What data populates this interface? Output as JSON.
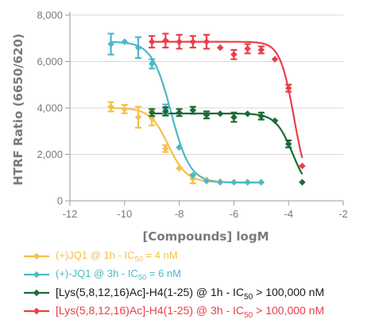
{
  "chart_data": {
    "type": "scatter",
    "xlabel": "[Compounds] logM",
    "ylabel": "HTRF Ratio (6650/620)",
    "xlim": [
      -12,
      -2
    ],
    "ylim": [
      0,
      8000
    ],
    "xticks": [
      -12,
      -10,
      -8,
      -6,
      -4,
      -2
    ],
    "yticks": [
      0,
      2000,
      4000,
      6000,
      8000
    ],
    "ytick_labels": [
      "0",
      "2,000",
      "4,000",
      "6,000",
      "8,000"
    ],
    "grid": "horizontal",
    "legend_position": "bottom",
    "series": [
      {
        "label_parts": [
          "(+)JQ1 @ 1h - IC",
          "50",
          " = 4 nM"
        ],
        "color": "#f5c04a",
        "x": [
          -10.5,
          -10.0,
          -9.5,
          -9.0,
          -8.5,
          -8.0,
          -7.5,
          -7.0,
          -6.5,
          -6.0,
          -5.5,
          -5.0
        ],
        "y": [
          4050,
          3950,
          3600,
          3550,
          2250,
          1400,
          950,
          900,
          830,
          800,
          800,
          800
        ],
        "err": [
          200,
          180,
          450,
          300,
          150,
          100,
          200,
          80,
          60,
          60,
          50,
          50
        ],
        "fit": {
          "top": 4000,
          "bottom": 800,
          "logIC50": -8.4,
          "hill": 1.3
        }
      },
      {
        "label_parts": [
          "(+)-JQ1 @ 3h - IC",
          "50",
          " = 6 nM"
        ],
        "color": "#4db8c8",
        "x": [
          -10.5,
          -10.0,
          -9.5,
          -9.0,
          -8.5,
          -8.0,
          -7.5,
          -7.0,
          -6.5,
          -6.0,
          -5.5,
          -5.0
        ],
        "y": [
          6750,
          6850,
          6600,
          5900,
          3950,
          2300,
          1100,
          850,
          800,
          800,
          800,
          800
        ],
        "err": [
          450,
          100,
          450,
          200,
          200,
          100,
          80,
          60,
          50,
          50,
          50,
          50
        ],
        "fit": {
          "top": 6850,
          "bottom": 780,
          "logIC50": -8.3,
          "hill": 1.25
        }
      },
      {
        "label_parts": [
          "[Lys(5,8,12,16)Ac]-H4(1-25) @ 1h - IC",
          "50",
          " > 100,000 nM"
        ],
        "color": "#1a6b35",
        "x": [
          -9.0,
          -8.5,
          -8.0,
          -7.5,
          -7.0,
          -6.5,
          -6.0,
          -5.5,
          -5.0,
          -4.5,
          -4.0,
          -3.5
        ],
        "y": [
          3800,
          3850,
          3800,
          3900,
          3700,
          3750,
          3600,
          3750,
          3650,
          3450,
          2450,
          800
        ],
        "err": [
          150,
          180,
          150,
          150,
          150,
          100,
          200,
          80,
          150,
          80,
          150,
          50
        ],
        "fit": {
          "top": 3760,
          "bottom": 300,
          "logIC50": -3.85,
          "hill": 1.4
        }
      },
      {
        "label_parts": [
          "[Lys(5,8,12,16)Ac]-H4(1-25) @ 3h - IC",
          "50",
          " > 100,000 nM"
        ],
        "color": "#e8404a",
        "x": [
          -9.0,
          -8.5,
          -8.0,
          -7.5,
          -7.0,
          -6.5,
          -6.0,
          -5.5,
          -5.0,
          -4.5,
          -4.0,
          -3.5
        ],
        "y": [
          6850,
          6900,
          6850,
          6850,
          6850,
          6600,
          6300,
          6550,
          6500,
          6100,
          4850,
          1500
        ],
        "err": [
          250,
          300,
          300,
          250,
          300,
          80,
          200,
          200,
          150,
          100,
          150,
          50
        ],
        "fit": {
          "top": 6850,
          "bottom": 300,
          "logIC50": -3.8,
          "hill": 1.7
        }
      }
    ]
  }
}
